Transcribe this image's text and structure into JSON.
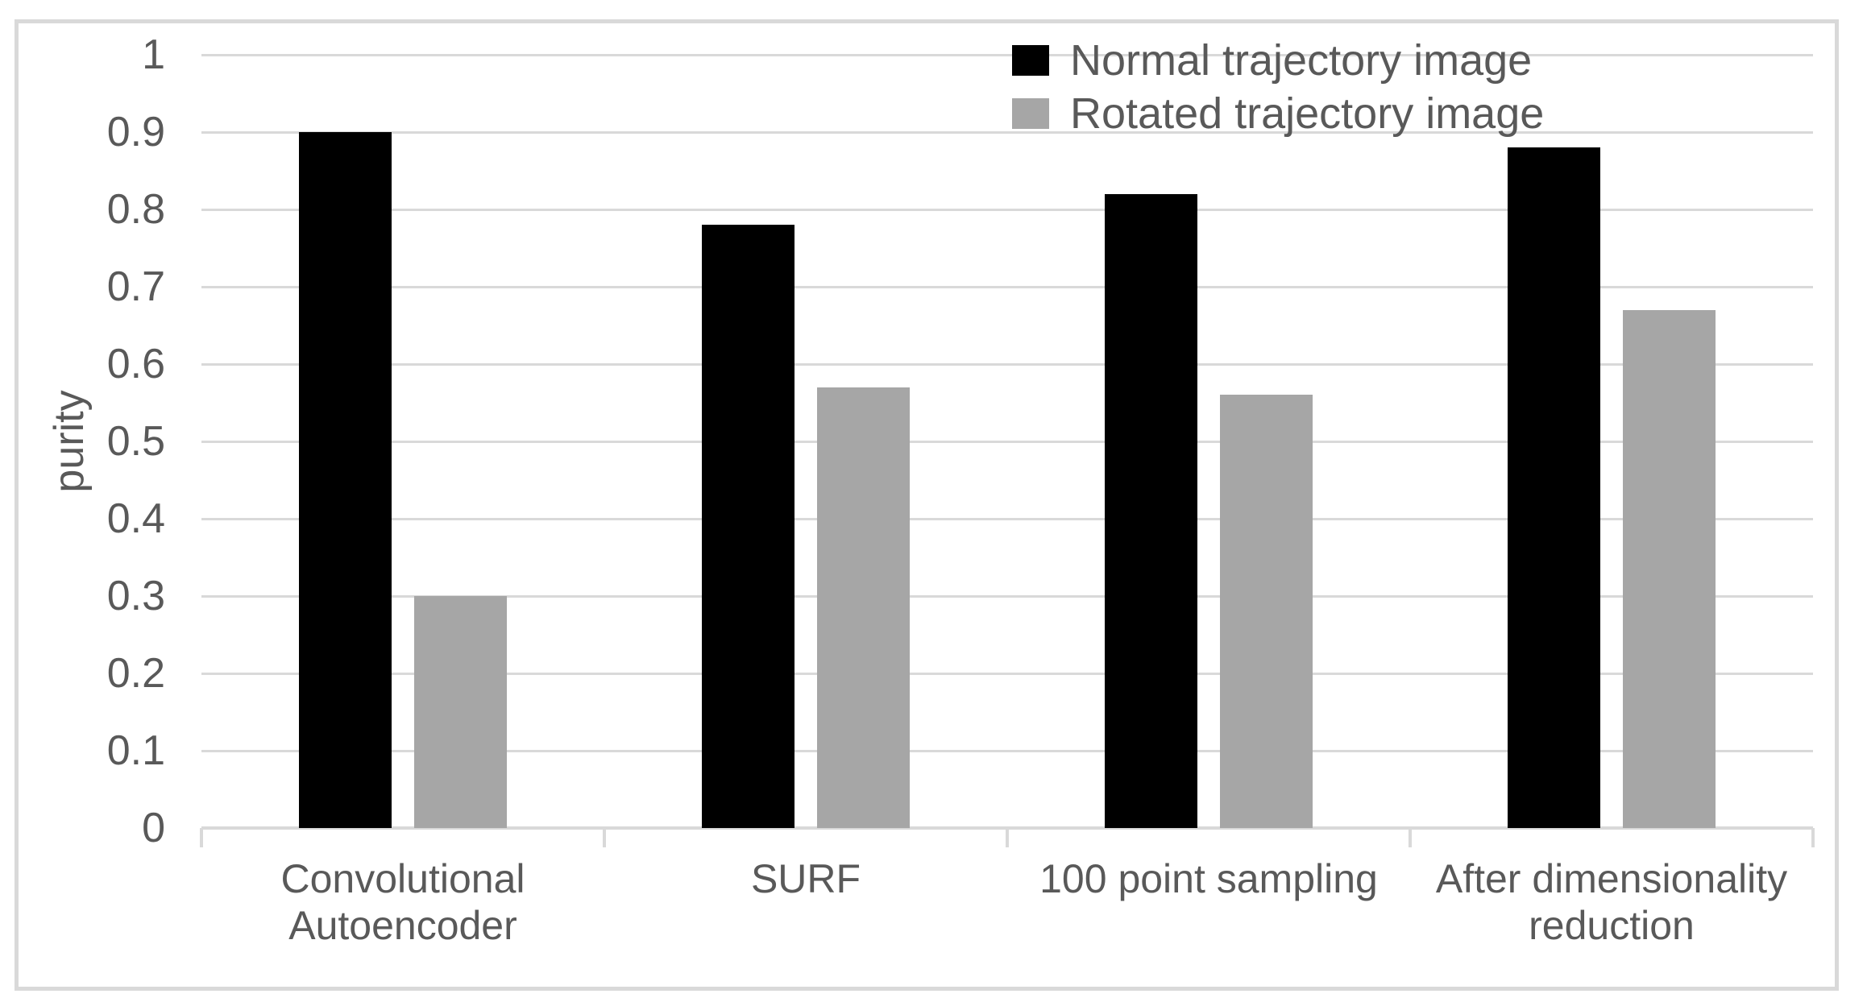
{
  "chart_data": {
    "type": "bar",
    "title": "",
    "xlabel": "",
    "ylabel": "purity",
    "ylim": [
      0,
      1
    ],
    "y_tick_step": 0.1,
    "y_tick_labels": [
      "0",
      "0.1",
      "0.2",
      "0.3",
      "0.4",
      "0.5",
      "0.6",
      "0.7",
      "0.8",
      "0.9",
      "1"
    ],
    "categories": [
      "Convolutional Autoencoder",
      "SURF",
      "100 point sampling",
      "After dimensionality reduction"
    ],
    "series": [
      {
        "name": "Normal trajectory image",
        "color": "#000000",
        "values": [
          0.9,
          0.78,
          0.82,
          0.88
        ]
      },
      {
        "name": "Rotated trajectory image",
        "color": "#a6a6a6",
        "values": [
          0.3,
          0.57,
          0.56,
          0.67
        ]
      }
    ],
    "legend_position": "top-right",
    "grid": true
  },
  "colors": {
    "background": "#ffffff",
    "frame_border": "#d9d9d9",
    "gridline": "#d9d9d9",
    "axis_line": "#d9d9d9",
    "text": "#595959"
  }
}
